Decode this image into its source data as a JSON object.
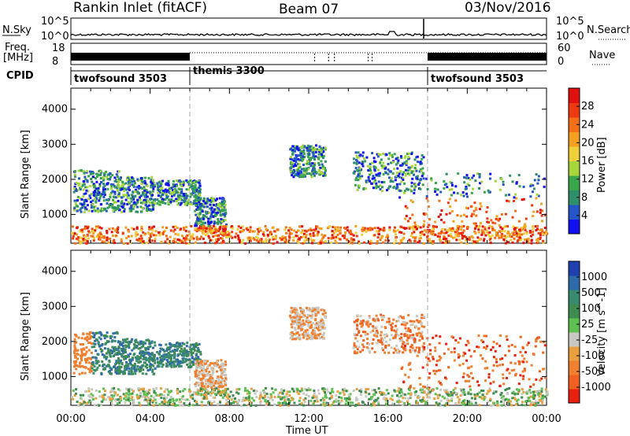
{
  "header": {
    "radar": "Rankin Inlet (fitACF)",
    "beam": "Beam 07",
    "date": "03/Nov/2016"
  },
  "top_panels": {
    "nsky_label": "N.Sky",
    "nsearch_label": "N.Search",
    "nsky_ticks": [
      "10^5",
      "10^0"
    ],
    "freq_label_1": "Freq.",
    "freq_label_2": "[MHz]",
    "freq_ticks": [
      "18",
      "8"
    ],
    "nave_label": "Nave",
    "nave_ticks": [
      "60",
      "0"
    ],
    "cpid_label": "CPID",
    "cpid_segments": [
      {
        "name": "twofsound 3503",
        "start_h": 0,
        "end_h": 6
      },
      {
        "name": "themis 3300",
        "start_h": 6,
        "end_h": 18
      },
      {
        "name": "twofsound 3503",
        "start_h": 18,
        "end_h": 24
      }
    ]
  },
  "chart_data": [
    {
      "type": "heatmap",
      "title": "",
      "xlabel": "Time UT",
      "ylabel": "Slant Range [km]",
      "x_ticks": [
        "00:00",
        "04:00",
        "08:00",
        "12:00",
        "16:00",
        "20:00",
        "00:00"
      ],
      "xlim_hours": [
        0,
        24
      ],
      "y_ticks": [
        "1000",
        "2000",
        "3000",
        "4000"
      ],
      "ylim": [
        180,
        4600
      ],
      "colorbar": {
        "label": "Power [dB]",
        "ticks": [
          "4",
          "8",
          "12",
          "16",
          "20",
          "24",
          "28"
        ],
        "range": [
          0,
          30
        ]
      }
    },
    {
      "type": "heatmap",
      "title": "",
      "xlabel": "Time UT",
      "ylabel": "Slant Range [km]",
      "x_ticks": [
        "00:00",
        "04:00",
        "08:00",
        "12:00",
        "16:00",
        "20:00",
        "00:00"
      ],
      "xlim_hours": [
        0,
        24
      ],
      "y_ticks": [
        "1000",
        "2000",
        "3000",
        "4000"
      ],
      "ylim": [
        180,
        4600
      ],
      "colorbar": {
        "label": "Velocity [m s^-1]",
        "ticks": [
          "1000",
          "500",
          "100",
          "25",
          "-25",
          "-100",
          "-500",
          "-1000"
        ],
        "range": [
          -1000,
          1000
        ]
      }
    }
  ],
  "colors": {
    "power_scale": [
      "#1010f0",
      "#2456c8",
      "#2f8f6a",
      "#3aa64a",
      "#a6d63c",
      "#f0d03a",
      "#f4a020",
      "#f47018",
      "#ee3a10",
      "#e01010"
    ],
    "velocity_scale": [
      "#2040b0",
      "#2e6aa8",
      "#3a8a70",
      "#3e8c50",
      "#5ec050",
      "#c8c8c0",
      "#e8a040",
      "#f08030",
      "#f06020",
      "#e82010"
    ],
    "gray_dashed": "#aaaaaa"
  }
}
